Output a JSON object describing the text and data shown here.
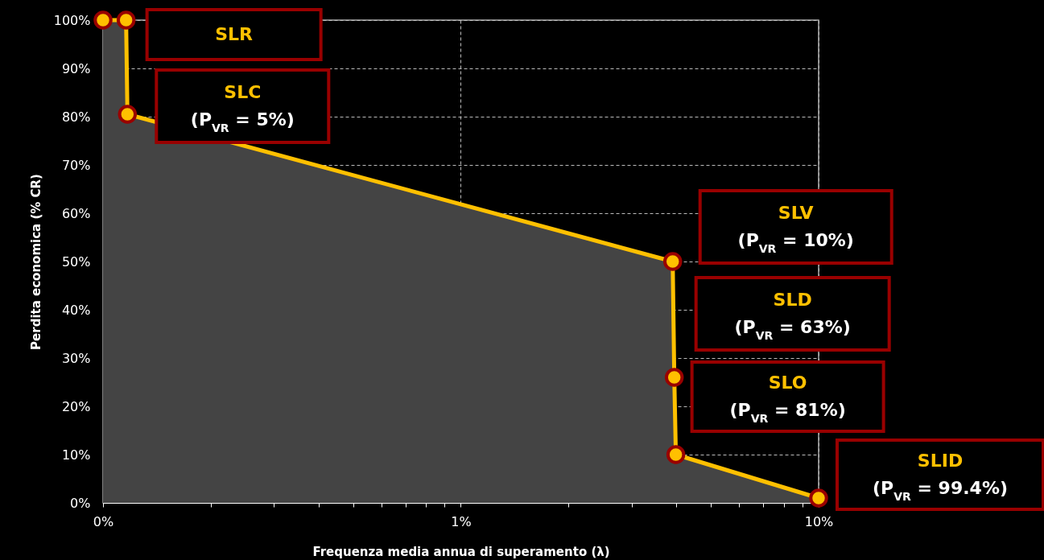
{
  "chart_data": {
    "type": "area",
    "xlabel": "Frequenza media annua di superamento (λ)",
    "ylabel": "Perdita economica (% CR)",
    "log": "x",
    "x": [
      0.1,
      0.116,
      0.117,
      3.91,
      3.95,
      3.99,
      10
    ],
    "series": [
      {
        "color": "#ffc000",
        "values": [
          100,
          100,
          80.5,
          50,
          26,
          10,
          1
        ]
      }
    ],
    "xlim": [
      0.1,
      10
    ],
    "xticks": [
      {
        "value": 0.1,
        "label": "0%"
      },
      {
        "value": 0.2,
        "label": null
      },
      {
        "value": 0.3,
        "label": null
      },
      {
        "value": 0.4,
        "label": null
      },
      {
        "value": 0.5,
        "label": null
      },
      {
        "value": 0.6,
        "label": null
      },
      {
        "value": 0.7,
        "label": null
      },
      {
        "value": 0.8,
        "label": null
      },
      {
        "value": 0.9,
        "label": null
      },
      {
        "value": 1,
        "label": "1%"
      },
      {
        "value": 2,
        "label": null
      },
      {
        "value": 3,
        "label": null
      },
      {
        "value": 4,
        "label": null
      },
      {
        "value": 5,
        "label": null
      },
      {
        "value": 6,
        "label": null
      },
      {
        "value": 7,
        "label": null
      },
      {
        "value": 8,
        "label": null
      },
      {
        "value": 9,
        "label": null
      },
      {
        "value": 10,
        "label": "10%"
      }
    ],
    "ylim": [
      0,
      100
    ],
    "yticks": [
      {
        "value": 0,
        "label": "0%"
      },
      {
        "value": 10,
        "label": "10%"
      },
      {
        "value": 20,
        "label": "20%"
      },
      {
        "value": 30,
        "label": "30%"
      },
      {
        "value": 40,
        "label": "40%"
      },
      {
        "value": 50,
        "label": "50%"
      },
      {
        "value": 60,
        "label": "60%"
      },
      {
        "value": 70,
        "label": "70%"
      },
      {
        "value": 80,
        "label": "80%"
      },
      {
        "value": 90,
        "label": "90%"
      },
      {
        "value": 100,
        "label": "100%"
      }
    ],
    "grid": true,
    "marker": "circle",
    "line_style": "solid",
    "annotations": [
      "SLR",
      "SLC\n(P$_{VR}$ = 5%)",
      "SLV\n(P$_{VR}$ = 10%)",
      "SLD\n(P$_{VR}$ = 63%)",
      "SLO\n(P$_{VR}$ = 81%)",
      "SLID\n(P$_{VR}$ = 99.4%)"
    ]
  }
}
